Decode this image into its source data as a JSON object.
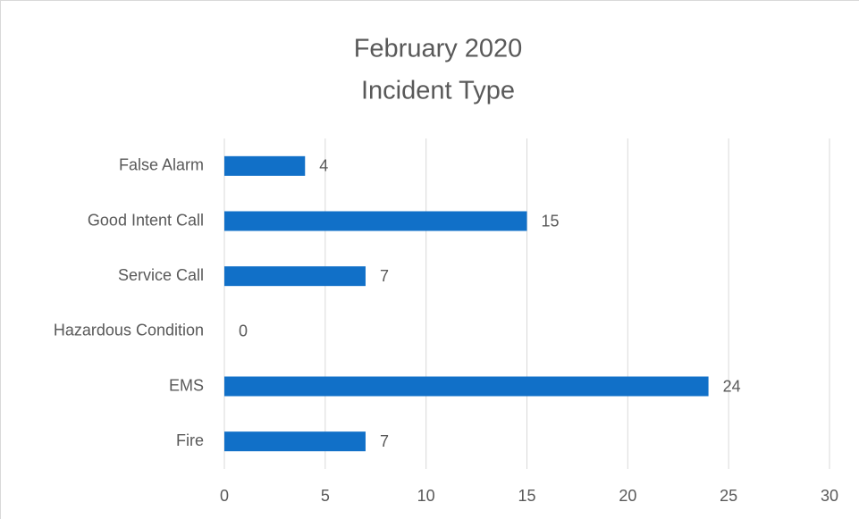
{
  "chart_data": {
    "type": "bar",
    "orientation": "horizontal",
    "title": [
      "February 2020",
      "Incident Type"
    ],
    "categories": [
      "False Alarm",
      "Good Intent Call",
      "Service Call",
      "Hazardous Condition",
      "EMS",
      "Fire"
    ],
    "values": [
      4,
      15,
      7,
      0,
      24,
      7
    ],
    "color": "#1170c8",
    "xlim": [
      0,
      30
    ],
    "xticks": [
      0,
      5,
      10,
      15,
      20,
      25,
      30
    ],
    "grid": true
  }
}
